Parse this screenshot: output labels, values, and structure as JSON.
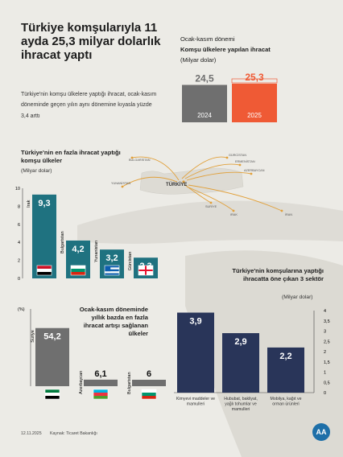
{
  "title": "Türkiye komşularıyla 11 ayda 25,3 milyar dolarlık ihracat yaptı",
  "intro": "Türkiye'nin komşu ülkelere yaptığı ihracat, ocak-kasım döneminde geçen yılın aynı dönemine kıyasla yüzde 3,4 arttı",
  "panel1": {
    "period": "Ocak-kasım dönemi",
    "heading": "Komşu ülkelere yapılan ihracat",
    "unit": "(Milyar dolar)"
  },
  "panel2": {
    "heading": "Türkiye'nin en fazla ihracat yaptığı komşu ülkeler",
    "unit": "(Milyar dolar)"
  },
  "panel3": {
    "heading": "Ocak-kasım döneminde yıllık bazda en fazla ihracat artışı sağlanan ülkeler",
    "unit": "(%)"
  },
  "panel4": {
    "heading": "Türkiye'nin komşularına yaptığı ihracatta öne çıkan 3 sektör",
    "unit": "(Milyar dolar)"
  },
  "map": {
    "turkiye": "TÜRKİYE",
    "labels": [
      "BULGARİSTAN",
      "GÜRCİSTAN",
      "ERMENİSTAN",
      "AZERBAYCAN",
      "YUNANİSTAN",
      "SURİYE",
      "IRAK",
      "İRAN"
    ]
  },
  "footer": {
    "date": "12.11.2025",
    "source": "Kaynak: Ticaret Bakanlığı",
    "logo": "AA"
  },
  "colors": {
    "dark_grey": "#6f6f6f",
    "orange": "#ef5a35",
    "teal": "#1f7280",
    "navy": "#293559",
    "background": "#ecebe6"
  },
  "chart_data": [
    {
      "type": "bar",
      "categories": [
        "2024",
        "2025"
      ],
      "values": [
        24.5,
        25.3
      ],
      "value_labels": [
        "24,5",
        "25,3"
      ],
      "colors": [
        "#6f6f6f",
        "#ef5a35"
      ]
    },
    {
      "type": "bar",
      "categories": [
        "Irak",
        "Bulgaristan",
        "Yunanistan",
        "Gürcistan"
      ],
      "values": [
        9.3,
        4.2,
        3.2,
        2.3
      ],
      "value_labels": [
        "9,3",
        "4,2",
        "3,2",
        "2,3"
      ],
      "flags": [
        "iraq-flag-icon",
        "bulgaria-flag-icon",
        "greece-flag-icon",
        "georgia-flag-icon"
      ],
      "ylim": [
        0,
        10
      ],
      "yticks": [
        "0",
        "2",
        "4",
        "6",
        "8",
        "10"
      ]
    },
    {
      "type": "bar",
      "categories": [
        "Suriye",
        "Azerbaycan",
        "Bulgaristan"
      ],
      "values": [
        54.2,
        6.1,
        6
      ],
      "value_labels": [
        "54,2",
        "6,1",
        "6"
      ],
      "flags": [
        "syria-flag-icon",
        "azerbaijan-flag-icon",
        "bulgaria-flag-icon"
      ],
      "ylim": [
        0,
        60
      ]
    },
    {
      "type": "bar",
      "categories": [
        "Kimyevi maddeler ve mamulleri",
        "Hububat, bakliyat, yağlı tohumlar ve mamulleri",
        "Mobilya, kağıt ve orman ürünleri"
      ],
      "values": [
        3.9,
        2.9,
        2.2
      ],
      "value_labels": [
        "3,9",
        "2,9",
        "2,2"
      ],
      "ylim": [
        0,
        4
      ],
      "yticks": [
        "0",
        "0,5",
        "1",
        "1,5",
        "2",
        "2,5",
        "3",
        "3,5",
        "4"
      ]
    }
  ]
}
